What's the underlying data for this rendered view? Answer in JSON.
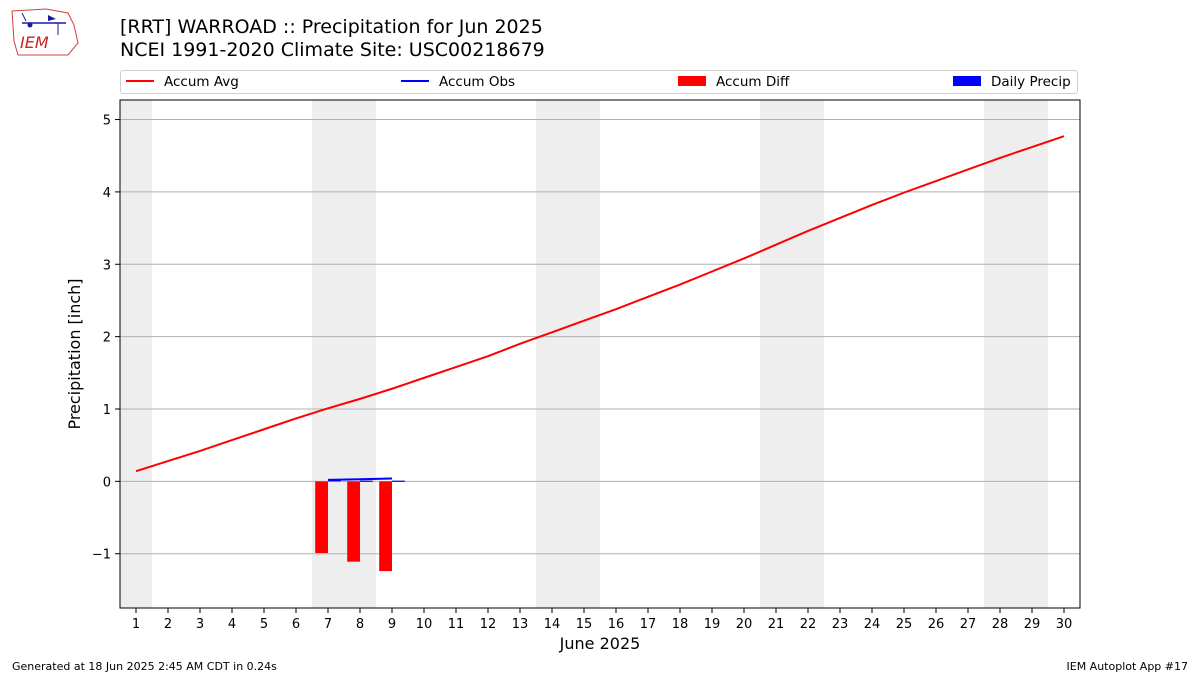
{
  "header": {
    "title_line1": "[RRT] WARROAD :: Precipitation for Jun 2025",
    "title_line2": "NCEI 1991-2020 Climate Site: USC00218679"
  },
  "logo": {
    "text": "IEM"
  },
  "legend": {
    "items": [
      {
        "label": "Accum Avg",
        "kind": "line",
        "color": "#ff0000"
      },
      {
        "label": "Accum Obs",
        "kind": "line",
        "color": "#0000ff"
      },
      {
        "label": "Accum Diff",
        "kind": "box",
        "color": "#ff0000"
      },
      {
        "label": "Daily Precip",
        "kind": "box",
        "color": "#0000ff"
      }
    ]
  },
  "footer": {
    "left": "Generated at 18 Jun 2025 2:45 AM CDT in 0.24s",
    "right": "IEM Autoplot App #17"
  },
  "chart_data": {
    "type": "line",
    "xlabel": "June 2025",
    "ylabel": "Precipitation [inch]",
    "xlim": [
      0.5,
      30.5
    ],
    "ylim": [
      -1.75,
      5.27
    ],
    "yticks": [
      -1,
      0,
      1,
      2,
      3,
      4,
      5
    ],
    "ytick_labels": [
      "−1",
      "0",
      "1",
      "2",
      "3",
      "4",
      "5"
    ],
    "xticks": [
      1,
      2,
      3,
      4,
      5,
      6,
      7,
      8,
      9,
      10,
      11,
      12,
      13,
      14,
      15,
      16,
      17,
      18,
      19,
      20,
      21,
      22,
      23,
      24,
      25,
      26,
      27,
      28,
      29,
      30
    ],
    "grid": true,
    "weekend_shading": [
      [
        0.5,
        1.5
      ],
      [
        6.5,
        8.5
      ],
      [
        13.5,
        15.5
      ],
      [
        20.5,
        22.5
      ],
      [
        27.5,
        29.5
      ]
    ],
    "weekend_color": "#eeeeee",
    "series": [
      {
        "name": "Accum Avg",
        "kind": "line",
        "color": "#ff0000",
        "x": [
          1,
          2,
          3,
          4,
          5,
          6,
          7,
          8,
          9,
          10,
          11,
          12,
          13,
          14,
          15,
          16,
          17,
          18,
          19,
          20,
          21,
          22,
          23,
          24,
          25,
          26,
          27,
          28,
          29,
          30
        ],
        "values": [
          0.14,
          0.28,
          0.42,
          0.57,
          0.72,
          0.87,
          1.01,
          1.14,
          1.28,
          1.43,
          1.58,
          1.73,
          1.9,
          2.06,
          2.22,
          2.38,
          2.55,
          2.72,
          2.9,
          3.08,
          3.27,
          3.46,
          3.64,
          3.82,
          3.99,
          4.15,
          4.31,
          4.47,
          4.62,
          4.77
        ]
      },
      {
        "name": "Accum Obs",
        "kind": "line",
        "color": "#0000ff",
        "x": [
          7,
          8,
          9
        ],
        "values": [
          0.02,
          0.03,
          0.04
        ]
      },
      {
        "name": "Accum Diff",
        "kind": "bar",
        "color": "#ff0000",
        "x": [
          7,
          8,
          9
        ],
        "values": [
          -0.99,
          -1.11,
          -1.24
        ]
      },
      {
        "name": "Daily Precip",
        "kind": "bar",
        "color": "#0000ff",
        "x": [
          7,
          8,
          9
        ],
        "values": [
          0.02,
          0.01,
          0.01
        ]
      }
    ]
  }
}
